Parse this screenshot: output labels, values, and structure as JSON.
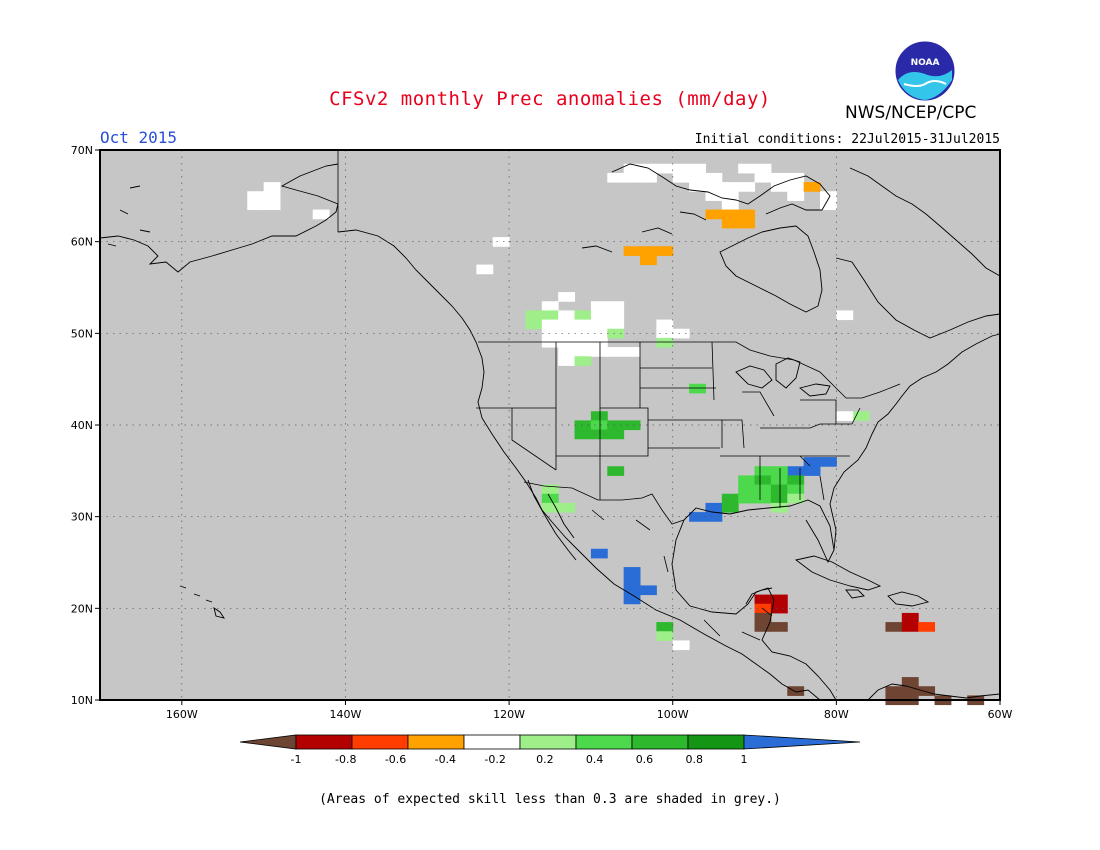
{
  "header": {
    "title": "CFSv2 monthly Prec anomalies (mm/day)",
    "agency": "NWS/NCEP/CPC",
    "logo_text": "NOAA",
    "month": "Oct 2015",
    "initial_conditions": "Initial conditions: 22Jul2015-31Jul2015"
  },
  "map": {
    "lat_range": [
      10,
      70
    ],
    "lon_range": [
      -170,
      -60
    ],
    "lat_ticks": [
      {
        "value": 10,
        "label": "10N"
      },
      {
        "value": 20,
        "label": "20N"
      },
      {
        "value": 30,
        "label": "30N"
      },
      {
        "value": 40,
        "label": "40N"
      },
      {
        "value": 50,
        "label": "50N"
      },
      {
        "value": 60,
        "label": "60N"
      },
      {
        "value": 70,
        "label": "70N"
      }
    ],
    "lon_ticks": [
      {
        "value": -160,
        "label": "160W"
      },
      {
        "value": -140,
        "label": "140W"
      },
      {
        "value": -120,
        "label": "120W"
      },
      {
        "value": -100,
        "label": "100W"
      },
      {
        "value": -80,
        "label": "80W"
      },
      {
        "value": -60,
        "label": "60W"
      }
    ],
    "grid": "dotted",
    "background_color": "#c6c6c6"
  },
  "colorbar": {
    "labels": [
      "-1",
      "-0.8",
      "-0.6",
      "-0.4",
      "-0.2",
      "0.2",
      "0.4",
      "0.6",
      "0.8",
      "1"
    ],
    "colors": [
      "#6e4432",
      "#b30000",
      "#ff3d00",
      "#ffa200",
      "#ffffff",
      "#9eee8a",
      "#4cd94c",
      "#2eb82e",
      "#149614",
      "#2b6dd6"
    ]
  },
  "anomaly_cells": [
    {
      "lat": 66,
      "lon": -149,
      "color": "#ffffff"
    },
    {
      "lat": 65,
      "lon": -149,
      "color": "#ffffff"
    },
    {
      "lat": 65,
      "lon": -151,
      "color": "#ffffff"
    },
    {
      "lat": 64,
      "lon": -151,
      "color": "#ffffff"
    },
    {
      "lat": 64,
      "lon": -149,
      "color": "#ffffff"
    },
    {
      "lat": 63,
      "lon": -143,
      "color": "#ffffff"
    },
    {
      "lat": 60,
      "lon": -121,
      "color": "#ffffff"
    },
    {
      "lat": 57,
      "lon": -123,
      "color": "#ffffff"
    },
    {
      "lat": 68,
      "lon": -105,
      "color": "#ffffff"
    },
    {
      "lat": 68,
      "lon": -103,
      "color": "#ffffff"
    },
    {
      "lat": 68,
      "lon": -101,
      "color": "#ffffff"
    },
    {
      "lat": 68,
      "lon": -99,
      "color": "#ffffff"
    },
    {
      "lat": 68,
      "lon": -97,
      "color": "#ffffff"
    },
    {
      "lat": 67,
      "lon": -107,
      "color": "#ffffff"
    },
    {
      "lat": 67,
      "lon": -105,
      "color": "#ffffff"
    },
    {
      "lat": 67,
      "lon": -103,
      "color": "#ffffff"
    },
    {
      "lat": 67,
      "lon": -99,
      "color": "#ffffff"
    },
    {
      "lat": 67,
      "lon": -97,
      "color": "#ffffff"
    },
    {
      "lat": 67,
      "lon": -95,
      "color": "#ffffff"
    },
    {
      "lat": 66,
      "lon": -97,
      "color": "#ffffff"
    },
    {
      "lat": 66,
      "lon": -95,
      "color": "#ffffff"
    },
    {
      "lat": 66,
      "lon": -93,
      "color": "#ffffff"
    },
    {
      "lat": 66,
      "lon": -91,
      "color": "#ffffff"
    },
    {
      "lat": 68,
      "lon": -91,
      "color": "#ffffff"
    },
    {
      "lat": 68,
      "lon": -89,
      "color": "#ffffff"
    },
    {
      "lat": 67,
      "lon": -89,
      "color": "#ffffff"
    },
    {
      "lat": 67,
      "lon": -87,
      "color": "#ffffff"
    },
    {
      "lat": 67,
      "lon": -85,
      "color": "#ffffff"
    },
    {
      "lat": 66,
      "lon": -87,
      "color": "#ffffff"
    },
    {
      "lat": 66,
      "lon": -85,
      "color": "#ffffff"
    },
    {
      "lat": 65,
      "lon": -85,
      "color": "#ffffff"
    },
    {
      "lat": 65,
      "lon": -81,
      "color": "#ffffff"
    },
    {
      "lat": 64,
      "lon": -81,
      "color": "#ffffff"
    },
    {
      "lat": 65,
      "lon": -95,
      "color": "#ffffff"
    },
    {
      "lat": 65,
      "lon": -93,
      "color": "#ffffff"
    },
    {
      "lat": 64,
      "lon": -93,
      "color": "#ffffff"
    },
    {
      "lat": 63,
      "lon": -95,
      "color": "#ffa200"
    },
    {
      "lat": 63,
      "lon": -93,
      "color": "#ffa200"
    },
    {
      "lat": 63,
      "lon": -91,
      "color": "#ffa200"
    },
    {
      "lat": 62,
      "lon": -93,
      "color": "#ffa200"
    },
    {
      "lat": 62,
      "lon": -91,
      "color": "#ffa200"
    },
    {
      "lat": 66,
      "lon": -83,
      "color": "#ffa200"
    },
    {
      "lat": 59,
      "lon": -103,
      "color": "#ffa200"
    },
    {
      "lat": 59,
      "lon": -105,
      "color": "#ffa200"
    },
    {
      "lat": 59,
      "lon": -101,
      "color": "#ffa200"
    },
    {
      "lat": 58,
      "lon": -103,
      "color": "#ffa200"
    },
    {
      "lat": 54,
      "lon": -113,
      "color": "#ffffff"
    },
    {
      "lat": 53,
      "lon": -115,
      "color": "#ffffff"
    },
    {
      "lat": 53,
      "lon": -109,
      "color": "#ffffff"
    },
    {
      "lat": 53,
      "lon": -107,
      "color": "#ffffff"
    },
    {
      "lat": 52,
      "lon": -117,
      "color": "#9eee8a"
    },
    {
      "lat": 52,
      "lon": -115,
      "color": "#9eee8a"
    },
    {
      "lat": 52,
      "lon": -113,
      "color": "#ffffff"
    },
    {
      "lat": 52,
      "lon": -111,
      "color": "#9eee8a"
    },
    {
      "lat": 52,
      "lon": -109,
      "color": "#ffffff"
    },
    {
      "lat": 52,
      "lon": -107,
      "color": "#ffffff"
    },
    {
      "lat": 51,
      "lon": -117,
      "color": "#9eee8a"
    },
    {
      "lat": 51,
      "lon": -115,
      "color": "#ffffff"
    },
    {
      "lat": 51,
      "lon": -113,
      "color": "#ffffff"
    },
    {
      "lat": 51,
      "lon": -111,
      "color": "#ffffff"
    },
    {
      "lat": 51,
      "lon": -109,
      "color": "#ffffff"
    },
    {
      "lat": 51,
      "lon": -107,
      "color": "#ffffff"
    },
    {
      "lat": 51,
      "lon": -101,
      "color": "#ffffff"
    },
    {
      "lat": 50,
      "lon": -115,
      "color": "#ffffff"
    },
    {
      "lat": 50,
      "lon": -113,
      "color": "#ffffff"
    },
    {
      "lat": 50,
      "lon": -111,
      "color": "#ffffff"
    },
    {
      "lat": 50,
      "lon": -109,
      "color": "#ffffff"
    },
    {
      "lat": 50,
      "lon": -107,
      "color": "#9eee8a"
    },
    {
      "lat": 50,
      "lon": -101,
      "color": "#ffffff"
    },
    {
      "lat": 50,
      "lon": -99,
      "color": "#ffffff"
    },
    {
      "lat": 49,
      "lon": -115,
      "color": "#ffffff"
    },
    {
      "lat": 49,
      "lon": -113,
      "color": "#ffffff"
    },
    {
      "lat": 49,
      "lon": -111,
      "color": "#ffffff"
    },
    {
      "lat": 49,
      "lon": -109,
      "color": "#ffffff"
    },
    {
      "lat": 49,
      "lon": -101,
      "color": "#9eee8a"
    },
    {
      "lat": 48,
      "lon": -113,
      "color": "#ffffff"
    },
    {
      "lat": 48,
      "lon": -111,
      "color": "#ffffff"
    },
    {
      "lat": 48,
      "lon": -109,
      "color": "#ffffff"
    },
    {
      "lat": 48,
      "lon": -107,
      "color": "#ffffff"
    },
    {
      "lat": 48,
      "lon": -105,
      "color": "#ffffff"
    },
    {
      "lat": 47,
      "lon": -113,
      "color": "#ffffff"
    },
    {
      "lat": 47,
      "lon": -111,
      "color": "#9eee8a"
    },
    {
      "lat": 44,
      "lon": -97,
      "color": "#4cd94c"
    },
    {
      "lat": 41,
      "lon": -109,
      "color": "#2eb82e"
    },
    {
      "lat": 40,
      "lon": -111,
      "color": "#2eb82e"
    },
    {
      "lat": 40,
      "lon": -109,
      "color": "#4cd94c"
    },
    {
      "lat": 40,
      "lon": -107,
      "color": "#2eb82e"
    },
    {
      "lat": 40,
      "lon": -105,
      "color": "#2eb82e"
    },
    {
      "lat": 39,
      "lon": -111,
      "color": "#2eb82e"
    },
    {
      "lat": 39,
      "lon": -109,
      "color": "#2eb82e"
    },
    {
      "lat": 39,
      "lon": -107,
      "color": "#2eb82e"
    },
    {
      "lat": 35,
      "lon": -107,
      "color": "#2eb82e"
    },
    {
      "lat": 41,
      "lon": -77,
      "color": "#9eee8a"
    },
    {
      "lat": 41,
      "lon": -79,
      "color": "#ffffff"
    },
    {
      "lat": 36,
      "lon": -83,
      "color": "#2b6dd6"
    },
    {
      "lat": 36,
      "lon": -81,
      "color": "#2b6dd6"
    },
    {
      "lat": 35,
      "lon": -85,
      "color": "#2b6dd6"
    },
    {
      "lat": 35,
      "lon": -83,
      "color": "#2b6dd6"
    },
    {
      "lat": 35,
      "lon": -87,
      "color": "#4cd94c"
    },
    {
      "lat": 35,
      "lon": -89,
      "color": "#4cd94c"
    },
    {
      "lat": 34,
      "lon": -91,
      "color": "#4cd94c"
    },
    {
      "lat": 34,
      "lon": -89,
      "color": "#2eb82e"
    },
    {
      "lat": 34,
      "lon": -87,
      "color": "#4cd94c"
    },
    {
      "lat": 34,
      "lon": -85,
      "color": "#2eb82e"
    },
    {
      "lat": 33,
      "lon": -91,
      "color": "#4cd94c"
    },
    {
      "lat": 33,
      "lon": -89,
      "color": "#4cd94c"
    },
    {
      "lat": 33,
      "lon": -87,
      "color": "#2eb82e"
    },
    {
      "lat": 33,
      "lon": -85,
      "color": "#4cd94c"
    },
    {
      "lat": 32,
      "lon": -93,
      "color": "#2eb82e"
    },
    {
      "lat": 32,
      "lon": -91,
      "color": "#4cd94c"
    },
    {
      "lat": 32,
      "lon": -89,
      "color": "#4cd94c"
    },
    {
      "lat": 32,
      "lon": -87,
      "color": "#2eb82e"
    },
    {
      "lat": 32,
      "lon": -85,
      "color": "#9eee8a"
    },
    {
      "lat": 31,
      "lon": -95,
      "color": "#2b6dd6"
    },
    {
      "lat": 31,
      "lon": -93,
      "color": "#2eb82e"
    },
    {
      "lat": 31,
      "lon": -87,
      "color": "#9eee8a"
    },
    {
      "lat": 30,
      "lon": -95,
      "color": "#2b6dd6"
    },
    {
      "lat": 30,
      "lon": -97,
      "color": "#2b6dd6"
    },
    {
      "lat": 33,
      "lon": -115,
      "color": "#9eee8a"
    },
    {
      "lat": 32,
      "lon": -115,
      "color": "#4cd94c"
    },
    {
      "lat": 31,
      "lon": -115,
      "color": "#9eee8a"
    },
    {
      "lat": 31,
      "lon": -113,
      "color": "#9eee8a"
    },
    {
      "lat": 26,
      "lon": -109,
      "color": "#2b6dd6"
    },
    {
      "lat": 24,
      "lon": -105,
      "color": "#2b6dd6"
    },
    {
      "lat": 23,
      "lon": -105,
      "color": "#2b6dd6"
    },
    {
      "lat": 22,
      "lon": -105,
      "color": "#2b6dd6"
    },
    {
      "lat": 22,
      "lon": -103,
      "color": "#2b6dd6"
    },
    {
      "lat": 21,
      "lon": -105,
      "color": "#2b6dd6"
    },
    {
      "lat": 18,
      "lon": -101,
      "color": "#2eb82e"
    },
    {
      "lat": 17,
      "lon": -101,
      "color": "#9eee8a"
    },
    {
      "lat": 16,
      "lon": -99,
      "color": "#ffffff"
    },
    {
      "lat": 21,
      "lon": -89,
      "color": "#b30000"
    },
    {
      "lat": 21,
      "lon": -87,
      "color": "#b30000"
    },
    {
      "lat": 20,
      "lon": -89,
      "color": "#ff3d00"
    },
    {
      "lat": 20,
      "lon": -87,
      "color": "#b30000"
    },
    {
      "lat": 19,
      "lon": -89,
      "color": "#6e4432"
    },
    {
      "lat": 18,
      "lon": -89,
      "color": "#6e4432"
    },
    {
      "lat": 18,
      "lon": -87,
      "color": "#6e4432"
    },
    {
      "lat": 19,
      "lon": -71,
      "color": "#b30000"
    },
    {
      "lat": 18,
      "lon": -73,
      "color": "#6e4432"
    },
    {
      "lat": 18,
      "lon": -71,
      "color": "#b30000"
    },
    {
      "lat": 18,
      "lon": -69,
      "color": "#ff3d00"
    },
    {
      "lat": 11,
      "lon": -85,
      "color": "#6e4432"
    },
    {
      "lat": 11,
      "lon": -73,
      "color": "#6e4432"
    },
    {
      "lat": 11,
      "lon": -71,
      "color": "#6e4432"
    },
    {
      "lat": 11,
      "lon": -69,
      "color": "#6e4432"
    },
    {
      "lat": 10,
      "lon": -73,
      "color": "#6e4432"
    },
    {
      "lat": 10,
      "lon": -71,
      "color": "#6e4432"
    },
    {
      "lat": 10,
      "lon": -67,
      "color": "#6e4432"
    },
    {
      "lat": 10,
      "lon": -63,
      "color": "#6e4432"
    },
    {
      "lat": 12,
      "lon": -71,
      "color": "#6e4432"
    },
    {
      "lat": 52,
      "lon": -79,
      "color": "#ffffff"
    }
  ],
  "footnote": "(Areas of expected skill less than 0.3 are shaded in grey.)"
}
